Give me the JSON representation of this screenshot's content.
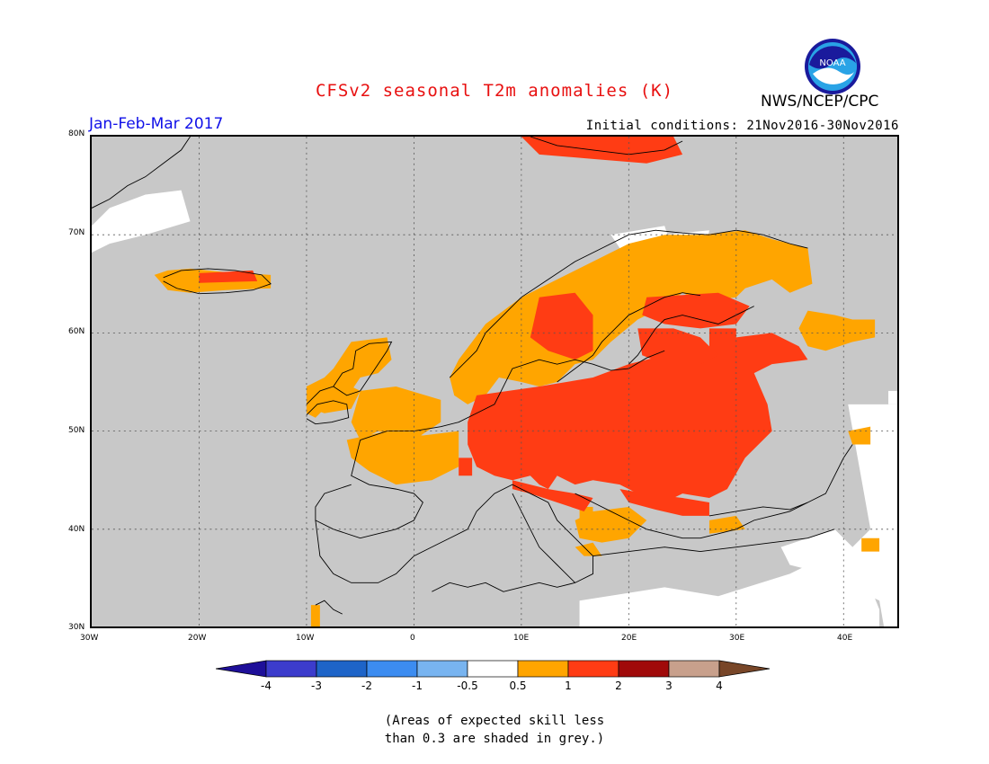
{
  "header": {
    "title": "CFSv2 seasonal T2m anomalies (K)",
    "agency": "NWS/NCEP/CPC",
    "logo_text": "NOAA",
    "period": "Jan-Feb-Mar 2017",
    "initial_conditions": "Initial conditions: 21Nov2016-30Nov2016"
  },
  "map": {
    "lat_labels": [
      "80N",
      "70N",
      "60N",
      "50N",
      "40N",
      "30N"
    ],
    "lon_labels": [
      "30W",
      "20W",
      "10W",
      "0",
      "10E",
      "20E",
      "30E",
      "40E"
    ],
    "colors": {
      "ocean_grey": "#c8c8c8",
      "land_white": "#ffffff",
      "orange": "#ffa500",
      "red": "#ff3c14"
    }
  },
  "colorbar": {
    "tick_labels": [
      "-4",
      "-3",
      "-2",
      "-1",
      "-0.5",
      "0.5",
      "1",
      "2",
      "3",
      "4"
    ],
    "colors": [
      "#1e0f99",
      "#3c3ccc",
      "#1e64c8",
      "#3c8cf0",
      "#78b4f0",
      "#ffffff",
      "#ffa500",
      "#ff3c14",
      "#a00a0a",
      "#c8a08c",
      "#784628"
    ]
  },
  "note": {
    "line1": "(Areas of expected skill less",
    "line2": "than 0.3 are shaded in grey.)"
  }
}
